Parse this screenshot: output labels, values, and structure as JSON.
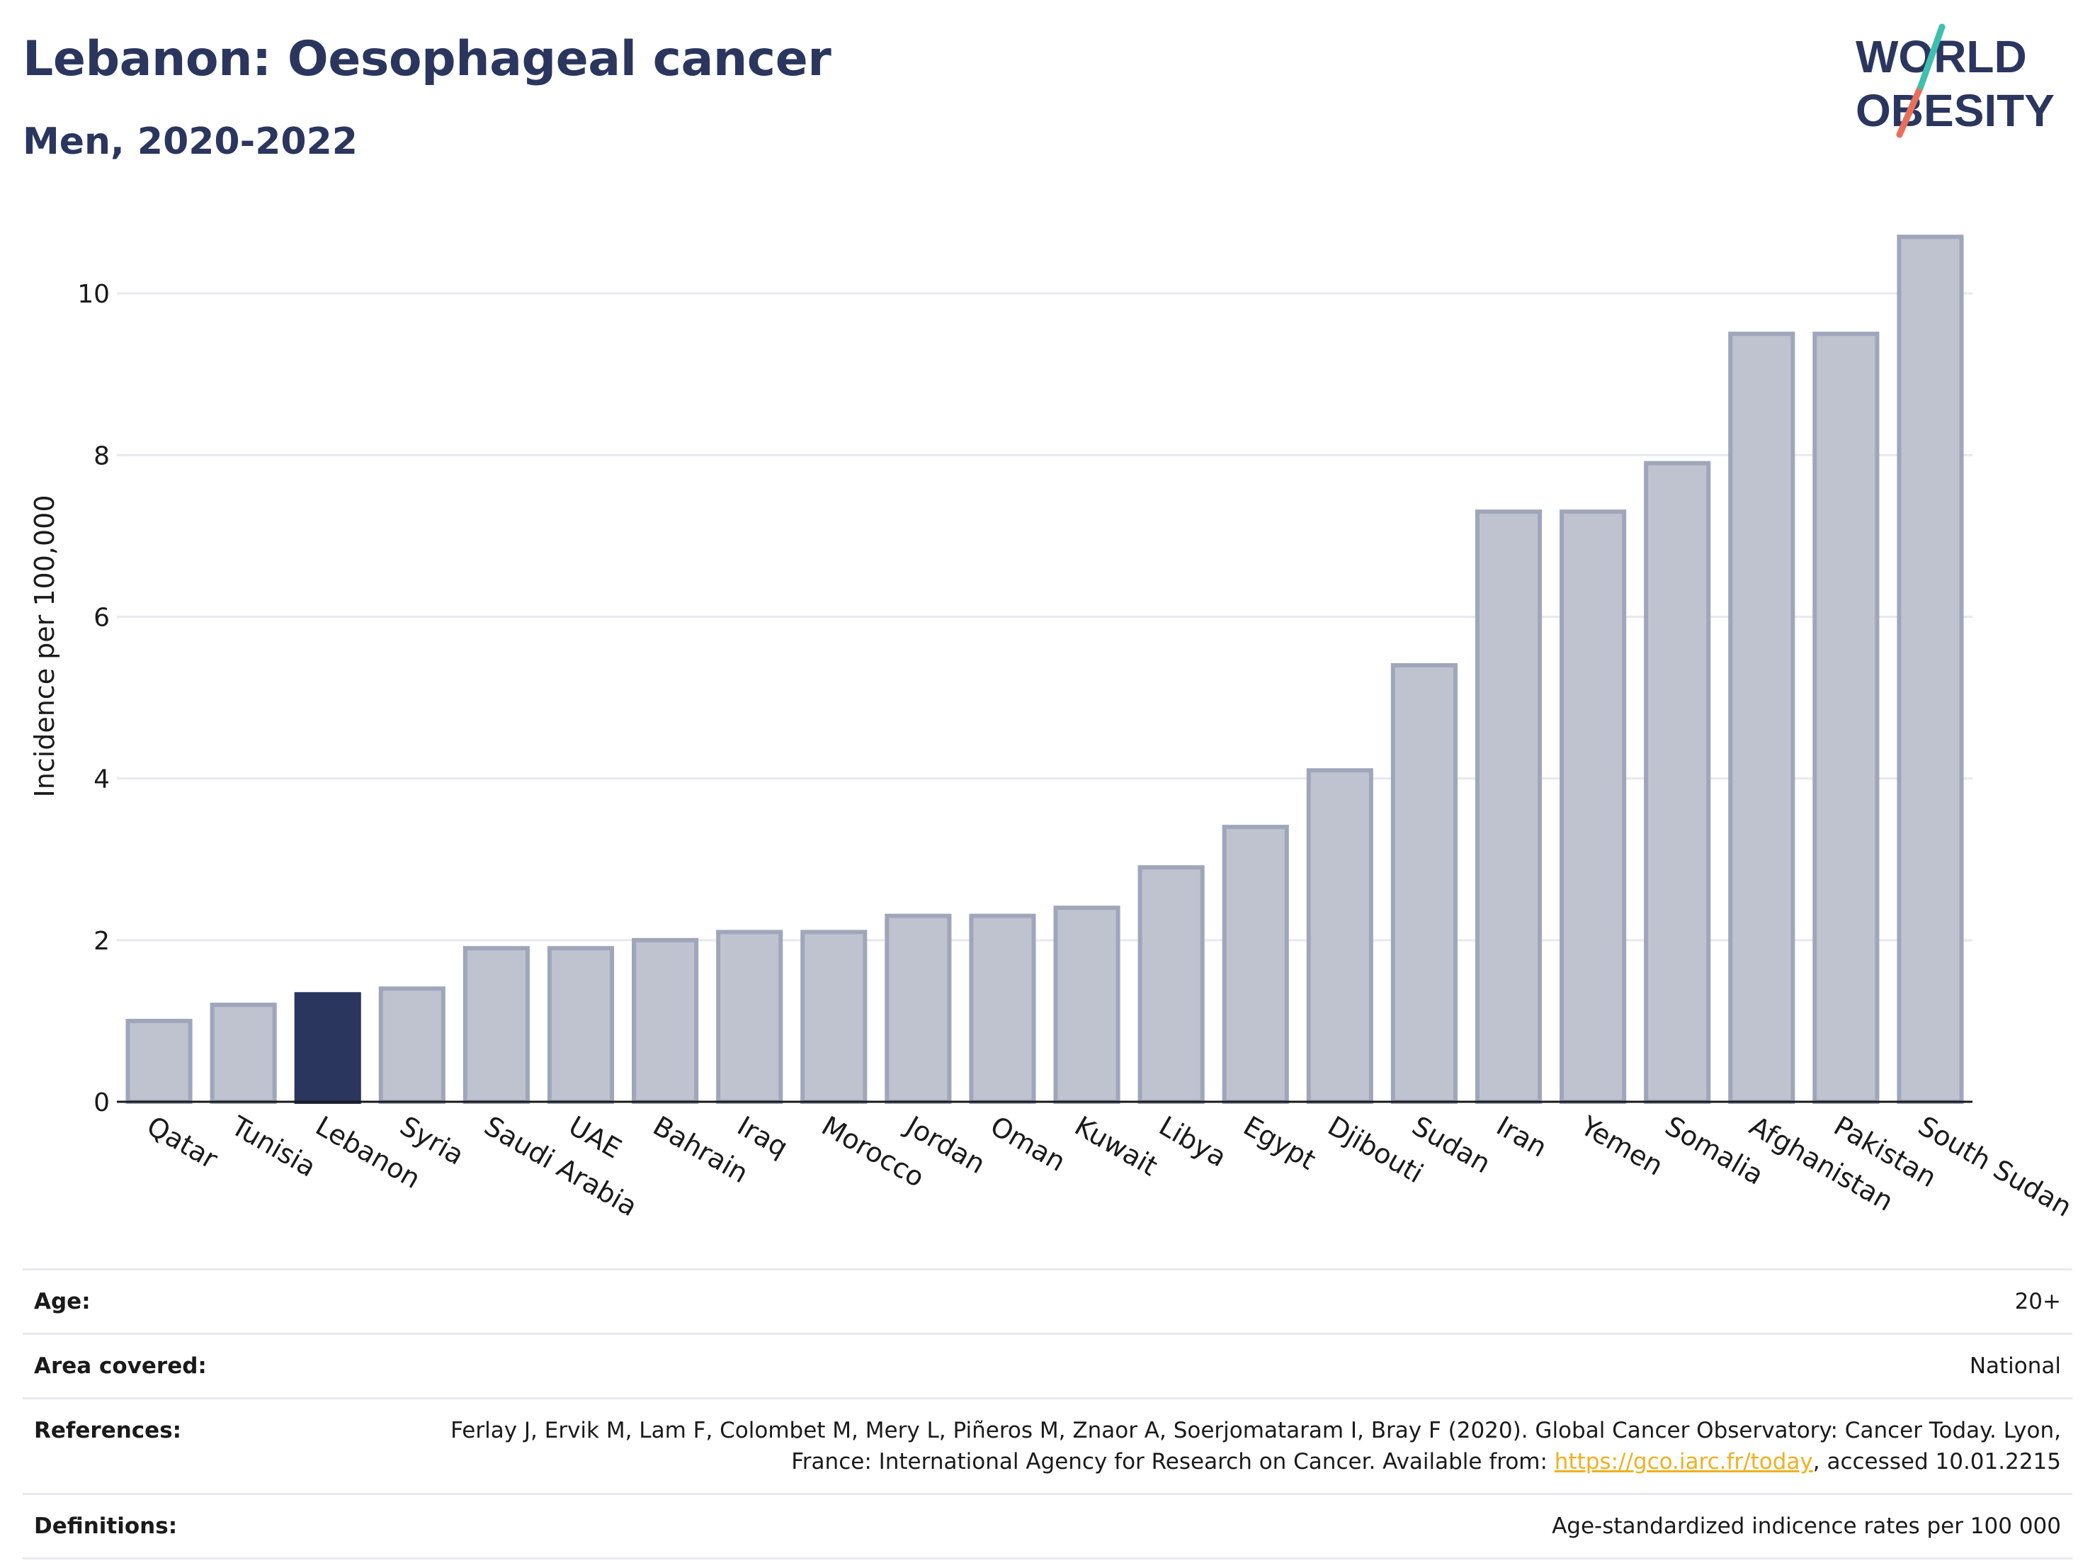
{
  "header": {
    "title": "Lebanon: Oesophageal cancer",
    "subtitle": "Men, 2020-2022"
  },
  "logo": {
    "line1": "WORLD",
    "line2": "OBESITY"
  },
  "chart_data": {
    "type": "bar",
    "ylabel": "Incidence per 100,000",
    "ylim": [
      0,
      11
    ],
    "yticks": [
      0,
      2,
      4,
      6,
      8,
      10
    ],
    "grid": true,
    "categories": [
      "Qatar",
      "Tunisia",
      "Lebanon",
      "Syria",
      "Saudi Arabia",
      "UAE",
      "Bahrain",
      "Iraq",
      "Morocco",
      "Jordan",
      "Oman",
      "Kuwait",
      "Libya",
      "Egypt",
      "Djibouti",
      "Sudan",
      "Iran",
      "Yemen",
      "Somalia",
      "Afghanistan",
      "Pakistan",
      "South Sudan"
    ],
    "values": [
      1.0,
      1.2,
      1.33,
      1.4,
      1.9,
      1.9,
      2.0,
      2.1,
      2.1,
      2.3,
      2.3,
      2.4,
      2.9,
      3.4,
      4.1,
      5.4,
      7.3,
      7.3,
      7.9,
      9.5,
      9.5,
      10.7
    ],
    "highlight": "Lebanon",
    "colors": {
      "bar": "#bfc3d0",
      "bar_border": "#a0a6ba",
      "highlight": "#2b365e",
      "grid": "#e6e9f0"
    }
  },
  "meta": {
    "age_label": "Age:",
    "age_value": "20+",
    "area_label": "Area covered:",
    "area_value": "National",
    "references_label": "References:",
    "references_text_1": "Ferlay J, Ervik M, Lam F, Colombet M, Mery L, Piñeros M, Znaor A, Soerjomataram I, Bray F (2020). Global Cancer Observatory: Cancer Today. Lyon, France: International Agency for Research on Cancer. Available from: ",
    "references_link": "https://gco.iarc.fr/today",
    "references_text_2": ", accessed 10.01.2215",
    "definitions_label": "Definitions:",
    "definitions_value": "Age-standardized indicence rates per 100 000"
  }
}
